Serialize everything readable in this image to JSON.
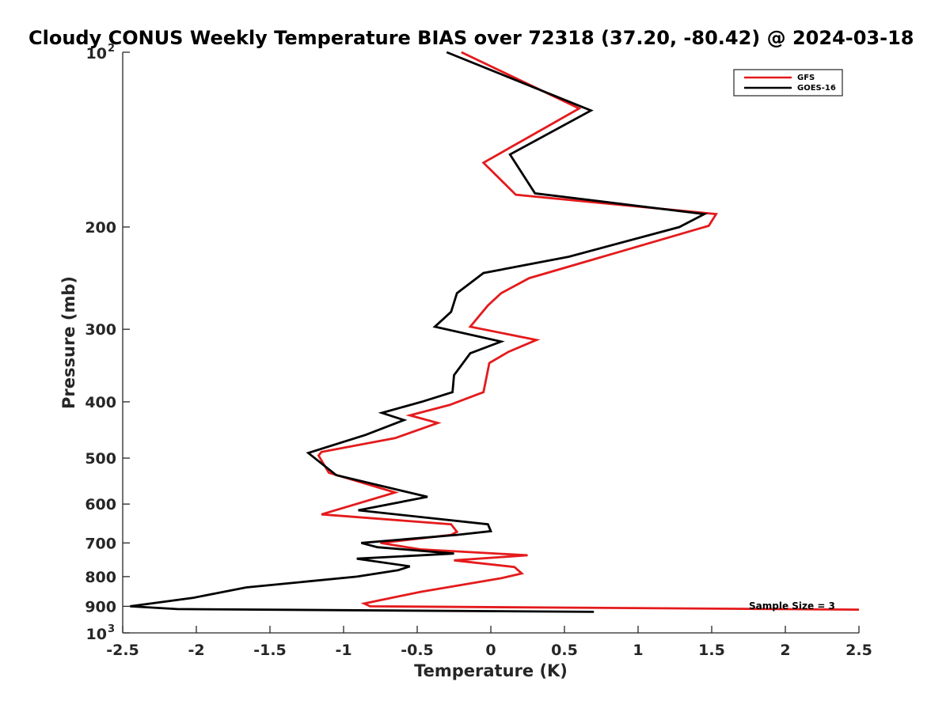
{
  "chart_data": {
    "type": "line",
    "title": "Cloudy CONUS Weekly Temperature BIAS over 72318 (37.20, -80.42) @ 2024-03-18",
    "xlabel": "Temperature (K)",
    "ylabel": "Pressure (mb)",
    "xlim": [
      -2.5,
      2.5
    ],
    "ylim": [
      100,
      1000
    ],
    "yscale": "log",
    "y_reversed": true,
    "x_ticks": [
      -2.5,
      -2,
      -1.5,
      -1,
      -0.5,
      0,
      0.5,
      1,
      1.5,
      2,
      2.5
    ],
    "x_tick_labels": [
      "-2.5",
      "-2",
      "-1.5",
      "-1",
      "-0.5",
      "0",
      "0.5",
      "1",
      "1.5",
      "2",
      "2.5"
    ],
    "y_ticks": [
      200,
      300,
      400,
      500,
      600,
      700,
      800,
      900
    ],
    "y_tick_labels": [
      "200",
      "300",
      "400",
      "500",
      "600",
      "700",
      "800",
      "900"
    ],
    "y_decade_ticks": [
      {
        "value": 100,
        "base": "10",
        "exp": "2"
      },
      {
        "value": 1000,
        "base": "10",
        "exp": "3"
      }
    ],
    "legend_position": "top-right",
    "annotation": "Sample Size = 3",
    "series": [
      {
        "name": "GFS",
        "color": "#e41a1c",
        "temperature": [
          -0.2,
          0.6,
          -0.05,
          0.17,
          1.53,
          1.48,
          0.26,
          0.07,
          -0.02,
          -0.14,
          0.31,
          0.12,
          -0.01,
          -0.05,
          -0.28,
          -0.55,
          -0.36,
          -0.65,
          -1.15,
          -1.17,
          -1.1,
          -0.65,
          -1.15,
          -0.27,
          -0.23,
          -0.27,
          -0.75,
          -0.48,
          0.25,
          -0.25,
          0.16,
          0.21,
          0.07,
          -0.48,
          -0.86,
          -0.82,
          2.5
        ],
        "pressure": [
          100,
          125,
          155,
          176,
          190,
          199,
          245,
          260,
          273,
          297,
          313,
          328,
          343,
          385,
          405,
          422,
          435,
          462,
          488,
          495,
          530,
          573,
          625,
          650,
          670,
          678,
          700,
          718,
          735,
          750,
          770,
          790,
          805,
          850,
          890,
          900,
          912
        ]
      },
      {
        "name": "GOES-16",
        "color": "#000000",
        "temperature": [
          -0.3,
          0.68,
          0.13,
          0.3,
          1.45,
          1.28,
          0.53,
          -0.05,
          -0.23,
          -0.27,
          -0.38,
          0.07,
          -0.14,
          -0.25,
          -0.26,
          -0.47,
          -0.74,
          -0.59,
          -0.85,
          -1.24,
          -1.05,
          -0.43,
          -0.9,
          -0.02,
          0,
          -0.23,
          -0.88,
          -0.77,
          -0.25,
          -0.91,
          -0.55,
          -0.63,
          -0.91,
          -1.66,
          -2.02,
          -2.45,
          -2.13,
          0.7
        ],
        "pressure": [
          100,
          126,
          150,
          175,
          190,
          200,
          225,
          240,
          260,
          280,
          297,
          315,
          330,
          360,
          385,
          400,
          418,
          430,
          456,
          490,
          535,
          583,
          615,
          650,
          668,
          678,
          700,
          712,
          730,
          745,
          768,
          780,
          800,
          835,
          870,
          900,
          910,
          920
        ]
      }
    ]
  }
}
